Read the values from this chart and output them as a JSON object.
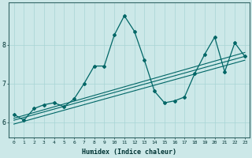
{
  "xlabel": "Humidex (Indice chaleur)",
  "background_color": "#cce8e8",
  "line_color": "#006666",
  "x_ticks": [
    0,
    1,
    2,
    3,
    4,
    5,
    6,
    7,
    8,
    9,
    10,
    11,
    12,
    13,
    14,
    15,
    16,
    17,
    18,
    19,
    20,
    21,
    22,
    23
  ],
  "y_ticks": [
    6,
    7,
    8
  ],
  "ylim": [
    5.6,
    9.1
  ],
  "xlim": [
    -0.5,
    23.5
  ],
  "main_y": [
    6.2,
    6.05,
    6.35,
    6.45,
    6.5,
    6.4,
    6.6,
    7.0,
    7.45,
    7.45,
    8.25,
    8.75,
    8.35,
    7.6,
    6.8,
    6.5,
    6.55,
    6.65,
    7.25,
    7.75,
    8.2,
    7.3,
    8.05,
    7.7
  ],
  "reg_line1_x": [
    0,
    23
  ],
  "reg_line1_y": [
    6.05,
    7.7
  ],
  "reg_line2_x": [
    0,
    23
  ],
  "reg_line2_y": [
    6.1,
    7.8
  ],
  "reg_line3_x": [
    0,
    23
  ],
  "reg_line3_y": [
    5.95,
    7.6
  ]
}
